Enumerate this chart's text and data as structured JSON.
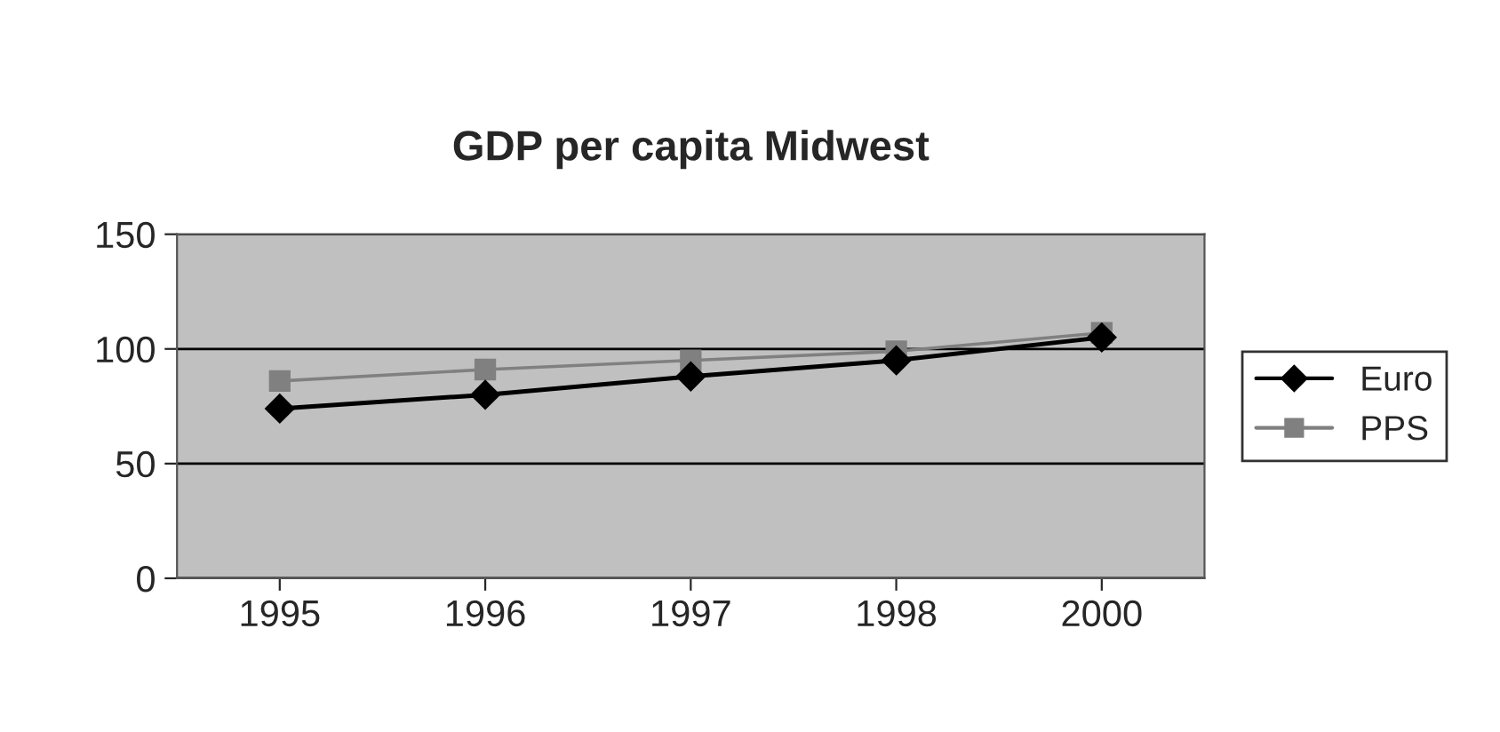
{
  "chart_data": {
    "type": "line",
    "title": "GDP per capita Midwest",
    "categories": [
      "1995",
      "1996",
      "1997",
      "1998",
      "2000"
    ],
    "series": [
      {
        "name": "Euro",
        "color": "#000000",
        "marker": "diamond",
        "values": [
          74,
          80,
          88,
          95,
          105
        ]
      },
      {
        "name": "PPS",
        "color": "#808080",
        "marker": "square",
        "values": [
          86,
          91,
          95,
          99,
          107
        ]
      }
    ],
    "ylim": [
      0,
      150
    ],
    "yticks": [
      0,
      50,
      100,
      150
    ],
    "grid": "y",
    "legend": "right"
  }
}
